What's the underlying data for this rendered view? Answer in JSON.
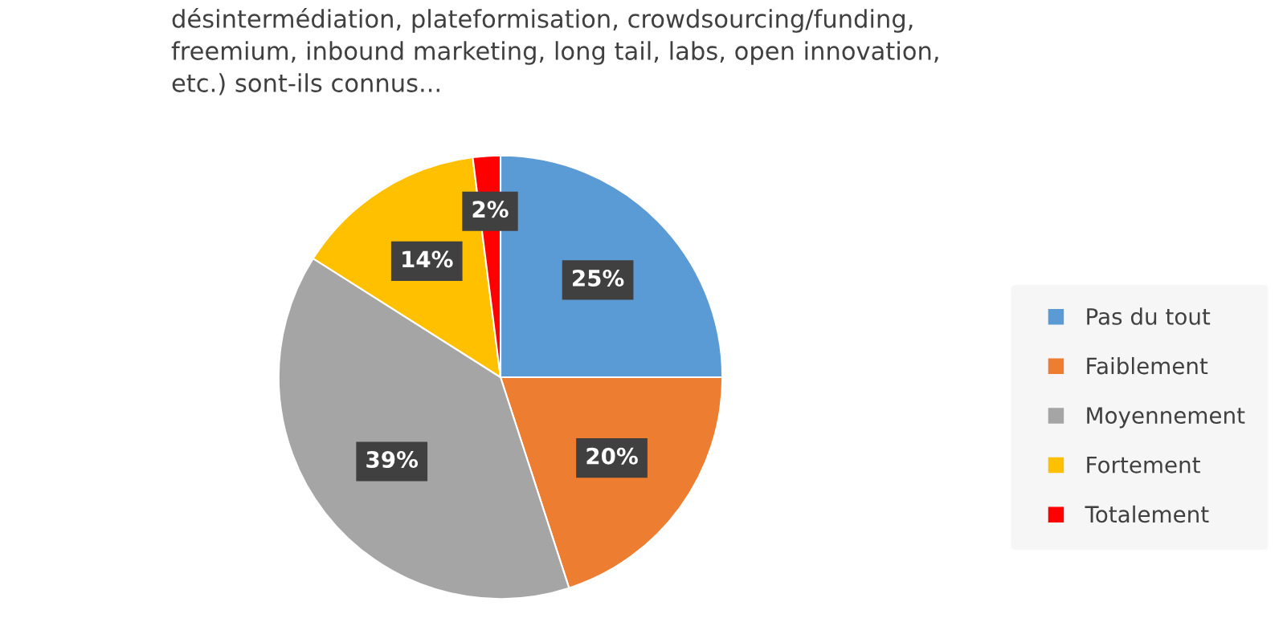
{
  "chart_data": {
    "type": "pie",
    "title": "désintermédiation, plateformisation, crowdsourcing/funding,\nfreemium, inbound marketing, long tail, labs, open innovation,\netc.) sont-ils connus...",
    "categories": [
      "Pas du tout",
      "Faiblement",
      "Moyennement",
      "Fortement",
      "Totalement"
    ],
    "values": [
      25,
      20,
      39,
      14,
      2
    ],
    "colors": [
      "#5b9bd5",
      "#ed7d31",
      "#a5a5a5",
      "#ffc000",
      "#ff0000"
    ],
    "value_labels": [
      "25%",
      "20%",
      "39%",
      "14%",
      "2%"
    ],
    "legend": "right"
  }
}
